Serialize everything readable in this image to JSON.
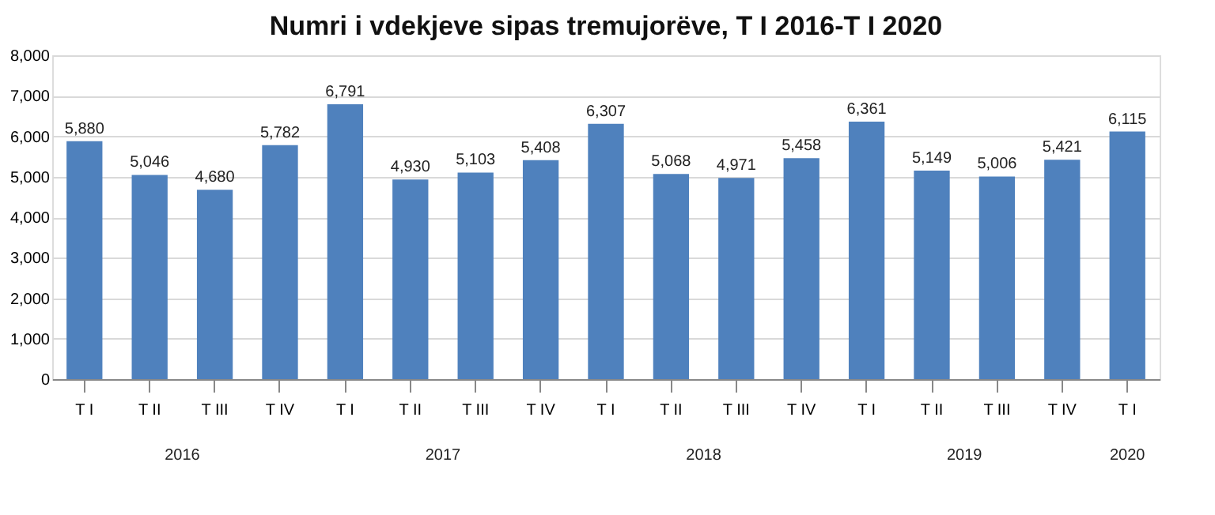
{
  "chart_data": {
    "type": "bar",
    "title": "Numri i vdekjeve sipas tremujorëve, T I 2016-T I 2020",
    "categories": [
      "T I",
      "T II",
      "T III",
      "T IV",
      "T I",
      "T II",
      "T III",
      "T IV",
      "T I",
      "T II",
      "T III",
      "T IV",
      "T I",
      "T II",
      "T III",
      "T IV",
      "T I"
    ],
    "values": [
      5880,
      5046,
      4680,
      5782,
      6791,
      4930,
      5103,
      5408,
      6307,
      5068,
      4971,
      5458,
      6361,
      5149,
      5006,
      5421,
      6115
    ],
    "value_labels": [
      "5,880",
      "5,046",
      "4,680",
      "5,782",
      "6,791",
      "4,930",
      "5,103",
      "5,408",
      "6,307",
      "5,068",
      "4,971",
      "5,458",
      "6,361",
      "5,149",
      "5,006",
      "5,421",
      "6,115"
    ],
    "color": "#4f81bd",
    "annotations": [
      "2016",
      "2017",
      "2018",
      "2019",
      "2020"
    ],
    "ylim": [
      0,
      8000
    ],
    "yticks": [
      {
        "value": 0,
        "label": "0"
      },
      {
        "value": 1000,
        "label": "1,000"
      },
      {
        "value": 2000,
        "label": "2,000"
      },
      {
        "value": 3000,
        "label": "3,000"
      },
      {
        "value": 4000,
        "label": "4,000"
      },
      {
        "value": 5000,
        "label": "5,000"
      },
      {
        "value": 6000,
        "label": "6,000"
      },
      {
        "value": 7000,
        "label": "7,000"
      },
      {
        "value": 8000,
        "label": "8,000"
      }
    ],
    "grid": "y"
  }
}
